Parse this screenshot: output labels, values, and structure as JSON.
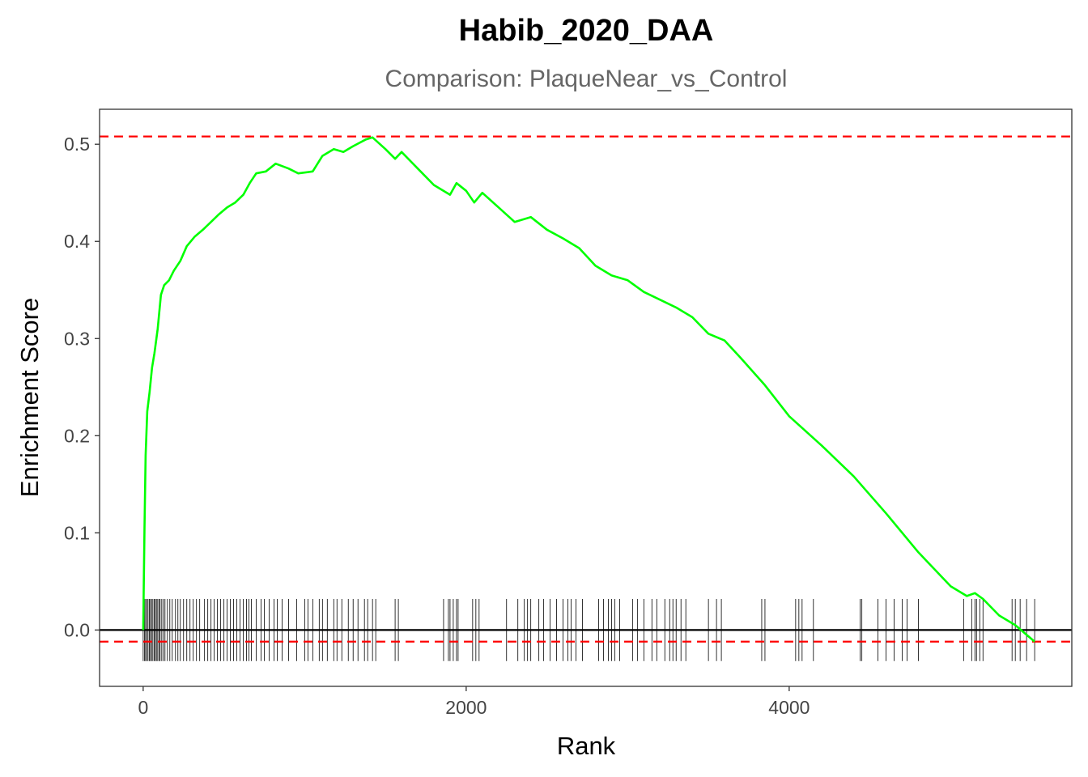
{
  "chart_data": {
    "type": "line",
    "title": "Habib_2020_DAA",
    "subtitle": "Comparison: PlaqueNear_vs_Control",
    "xlabel": "Rank",
    "ylabel": "Enrichment Score",
    "xlim": [
      -270,
      5750
    ],
    "ylim": [
      -0.058,
      0.536
    ],
    "x_ticks": [
      0,
      2000,
      4000
    ],
    "x_tick_labels": [
      "0",
      "2000",
      "4000"
    ],
    "y_ticks": [
      0.0,
      0.1,
      0.2,
      0.3,
      0.4,
      0.5
    ],
    "y_tick_labels": [
      "0.0",
      "0.1",
      "0.2",
      "0.3",
      "0.4",
      "0.5"
    ],
    "grid": false,
    "line_color": "#00ff00",
    "upper_dashed": 0.508,
    "lower_dashed": -0.012,
    "dashed_color": "#ff0000",
    "zero_line": 0.0,
    "rug_range": [
      -0.032,
      0.032
    ],
    "series": [
      {
        "x": [
          0,
          8,
          15,
          25,
          40,
          55,
          70,
          90,
          110,
          130,
          160,
          190,
          230,
          270,
          320,
          370,
          420,
          470,
          520,
          570,
          620,
          660,
          700,
          760,
          820,
          900,
          960,
          1050,
          1110,
          1180,
          1240,
          1300,
          1380,
          1420,
          1500,
          1560,
          1600,
          1700,
          1800,
          1900,
          1940,
          2000,
          2050,
          2100,
          2200,
          2300,
          2400,
          2500,
          2600,
          2700,
          2800,
          2900,
          3000,
          3100,
          3200,
          3300,
          3400,
          3500,
          3600,
          3700,
          3850,
          4000,
          4200,
          4400,
          4600,
          4800,
          5000,
          5100,
          5150,
          5200,
          5300,
          5400,
          5520
        ],
        "y": [
          0.0,
          0.105,
          0.18,
          0.225,
          0.245,
          0.27,
          0.285,
          0.31,
          0.345,
          0.355,
          0.36,
          0.37,
          0.38,
          0.395,
          0.405,
          0.412,
          0.42,
          0.428,
          0.435,
          0.44,
          0.448,
          0.46,
          0.47,
          0.472,
          0.48,
          0.475,
          0.47,
          0.472,
          0.488,
          0.495,
          0.492,
          0.498,
          0.505,
          0.507,
          0.495,
          0.485,
          0.492,
          0.475,
          0.458,
          0.448,
          0.46,
          0.452,
          0.44,
          0.45,
          0.435,
          0.42,
          0.425,
          0.412,
          0.403,
          0.393,
          0.375,
          0.365,
          0.36,
          0.348,
          0.34,
          0.332,
          0.322,
          0.305,
          0.298,
          0.28,
          0.252,
          0.22,
          0.19,
          0.158,
          0.12,
          0.08,
          0.045,
          0.035,
          0.038,
          0.032,
          0.015,
          0.005,
          -0.012
        ]
      }
    ],
    "rug": [
      0,
      8,
      15,
      22,
      30,
      38,
      45,
      52,
      60,
      68,
      75,
      82,
      90,
      98,
      105,
      115,
      125,
      135,
      150,
      165,
      180,
      200,
      215,
      230,
      250,
      270,
      290,
      310,
      330,
      350,
      380,
      400,
      420,
      440,
      460,
      480,
      500,
      520,
      540,
      560,
      580,
      600,
      620,
      640,
      655,
      670,
      700,
      730,
      750,
      780,
      810,
      830,
      860,
      900,
      950,
      1000,
      1020,
      1050,
      1090,
      1110,
      1140,
      1180,
      1200,
      1230,
      1270,
      1300,
      1330,
      1370,
      1390,
      1420,
      1440,
      1560,
      1580,
      1860,
      1890,
      1900,
      1920,
      1940,
      1950,
      2040,
      2060,
      2080,
      2250,
      2320,
      2360,
      2380,
      2400,
      2450,
      2480,
      2520,
      2560,
      2600,
      2630,
      2650,
      2680,
      2720,
      2820,
      2850,
      2880,
      2900,
      2920,
      2950,
      3030,
      3060,
      3100,
      3150,
      3180,
      3230,
      3260,
      3280,
      3300,
      3330,
      3360,
      3500,
      3550,
      3580,
      3830,
      3850,
      4040,
      4060,
      4080,
      4150,
      4440,
      4450,
      4550,
      4600,
      4650,
      4700,
      4730,
      4800,
      5080,
      5130,
      5150,
      5160,
      5180,
      5200,
      5380,
      5400,
      5430,
      5470,
      5520
    ]
  }
}
